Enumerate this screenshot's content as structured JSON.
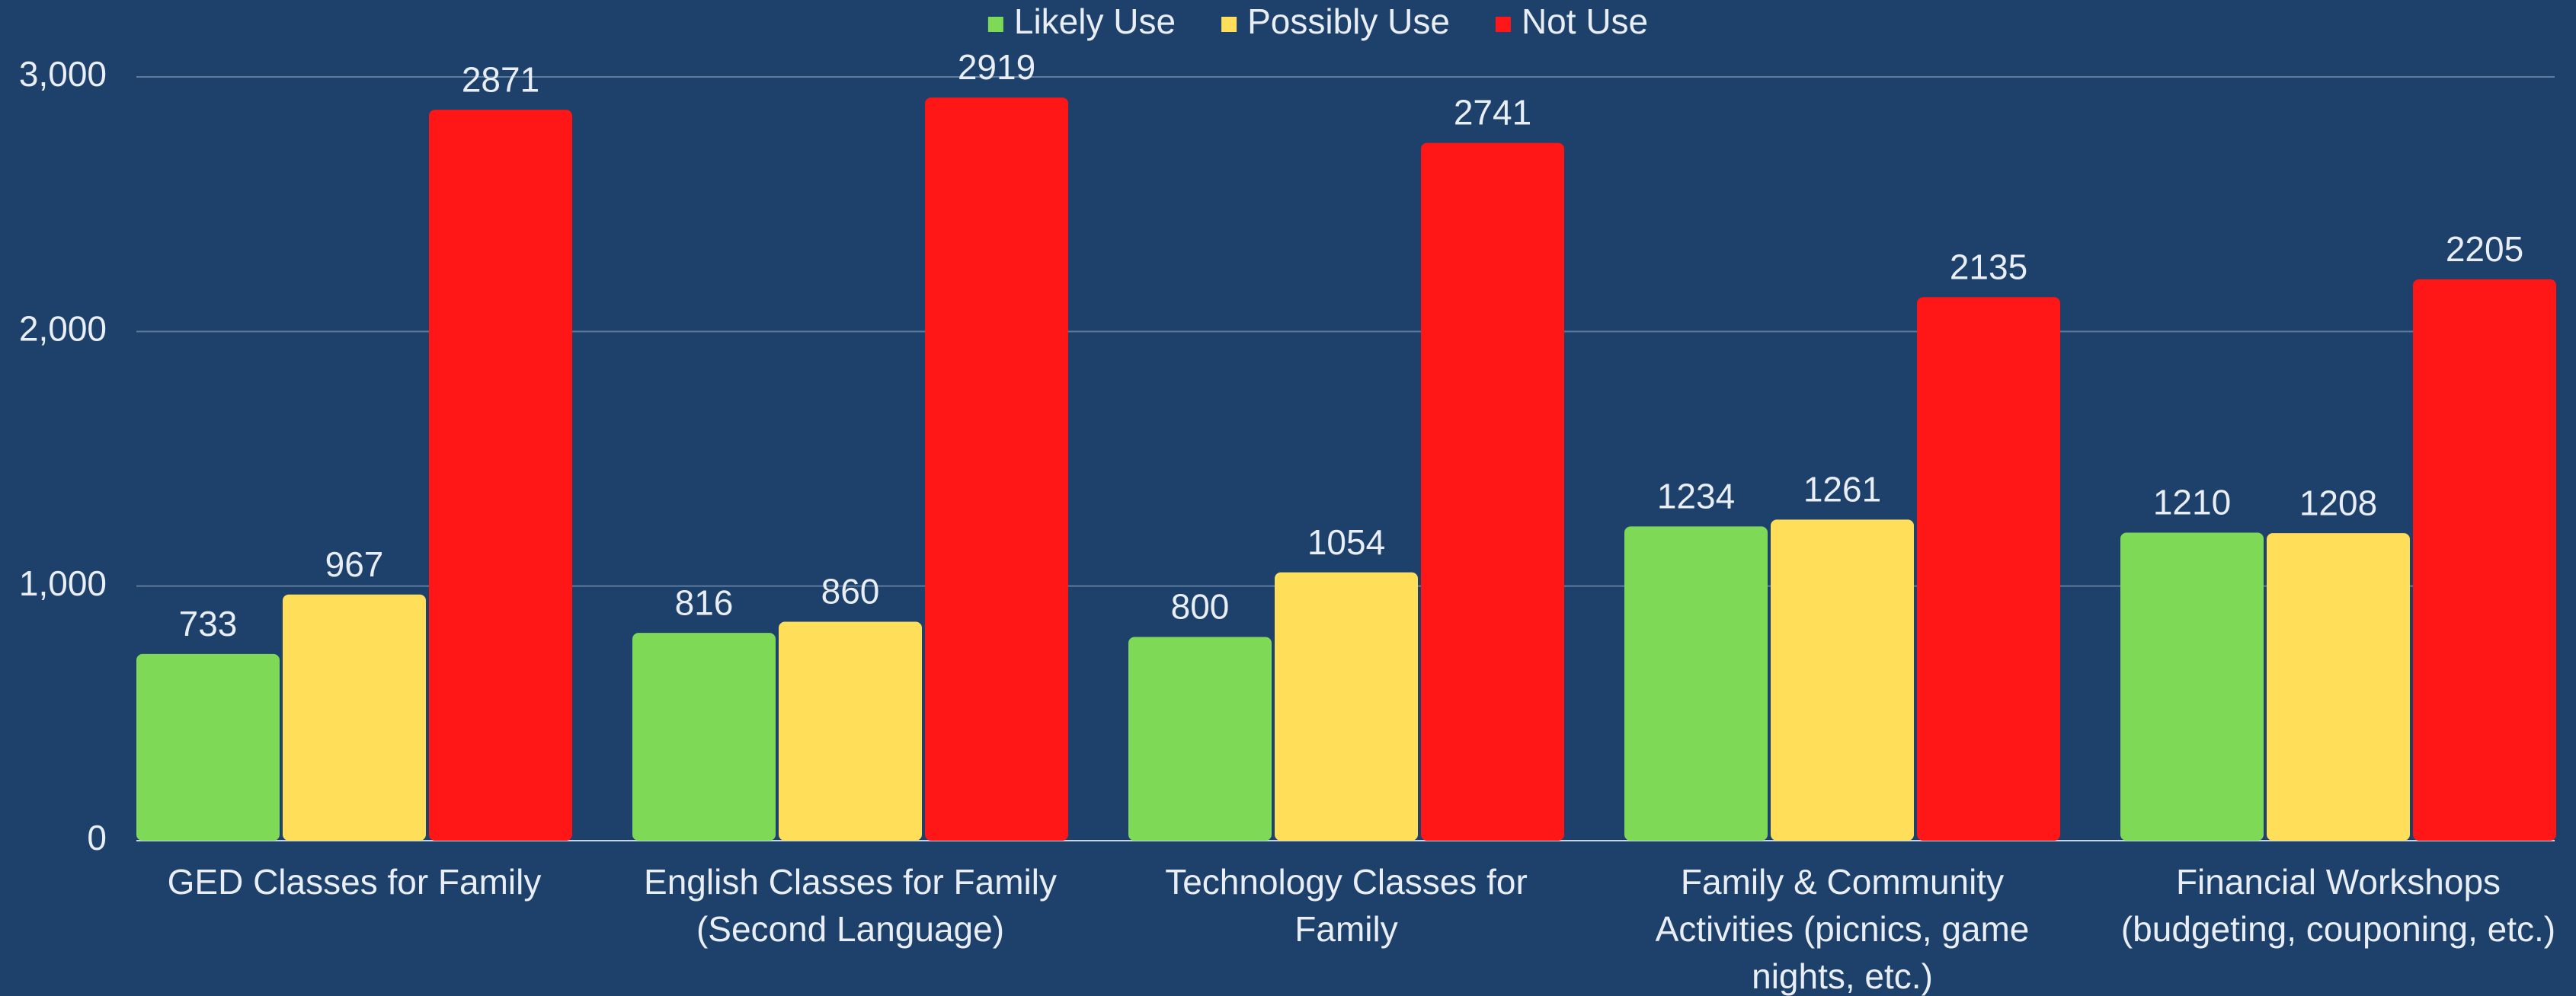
{
  "chart_data": {
    "type": "bar",
    "categories": [
      "GED Classes for Family",
      "English Classes for Family (Second Language)",
      "Technology Classes for Family",
      "Family & Community Activities (picnics, game nights, etc.)",
      "Financial Workshops (budgeting, couponing, etc.)"
    ],
    "series": [
      {
        "name": "Likely Use",
        "color": "#7ed957",
        "values": [
          733,
          816,
          800,
          1234,
          1210
        ]
      },
      {
        "name": "Possibly Use",
        "color": "#ffde59",
        "values": [
          967,
          860,
          1054,
          1261,
          1208
        ]
      },
      {
        "name": "Not Use",
        "color": "#ff1616",
        "values": [
          2871,
          2919,
          2741,
          2135,
          2205
        ]
      }
    ],
    "ylim": [
      0,
      3000
    ],
    "yticks": [
      0,
      {
        "value": 1000,
        "label": "1,000"
      },
      {
        "value": 2000,
        "label": "2,000"
      },
      {
        "value": 3000,
        "label": "3,000"
      }
    ],
    "grid": true,
    "legend": "top",
    "background": "#1d416b"
  }
}
